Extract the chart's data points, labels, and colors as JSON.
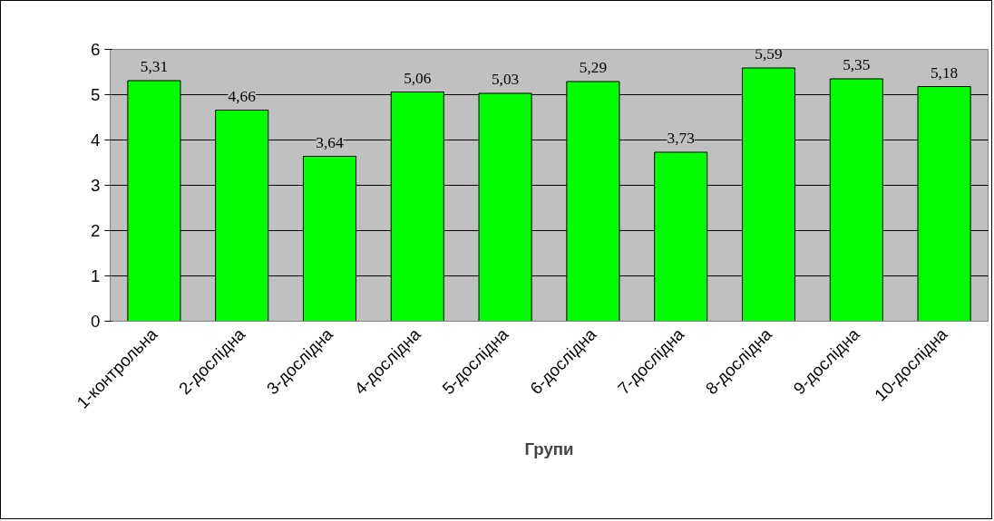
{
  "chart_data": {
    "type": "bar",
    "xlabel": "Групи",
    "categories": [
      "1-контрольна",
      "2-дослідна",
      "3-дослідна",
      "4-дослідна",
      "5-дослідна",
      "6-дослідна",
      "7-дослідна",
      "8-дослідна",
      "9-дослідна",
      "10-дослідна"
    ],
    "values": [
      5.31,
      4.66,
      3.64,
      5.06,
      5.03,
      5.29,
      3.73,
      5.59,
      5.35,
      5.18
    ],
    "value_labels": [
      "5,31",
      "4,66",
      "3,64",
      "5,06",
      "5,03",
      "5,29",
      "3,73",
      "5,59",
      "5,35",
      "5,18"
    ],
    "color": "#00ff00",
    "ylim": [
      0,
      6
    ],
    "yticks": [
      0,
      1,
      2,
      3,
      4,
      5,
      6
    ],
    "grid": "y"
  }
}
